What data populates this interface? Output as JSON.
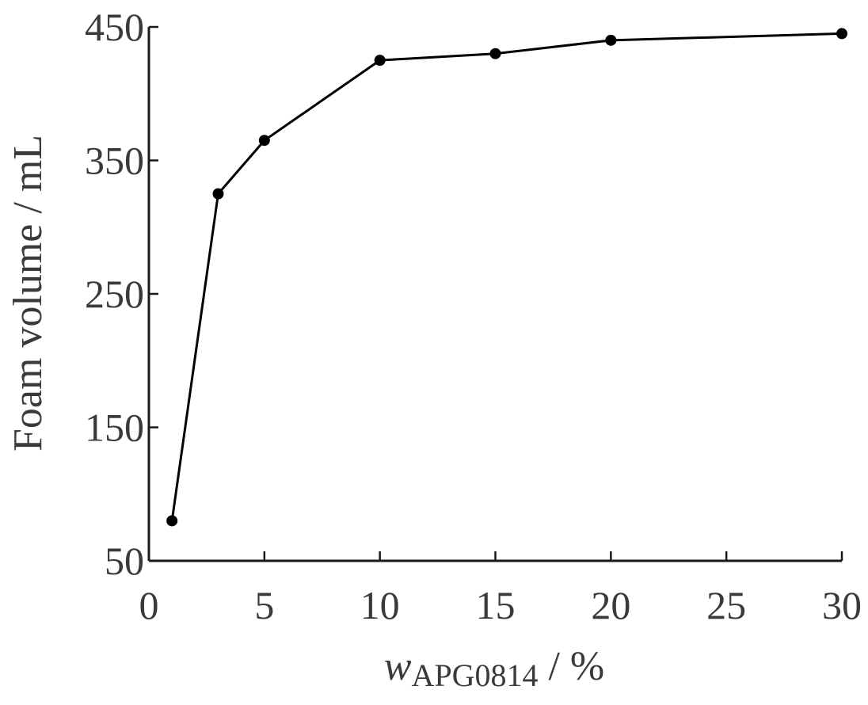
{
  "chart_data": {
    "type": "line",
    "title": "",
    "xlabel_var": "w",
    "xlabel_sub": "APG0814",
    "xlabel_unit": " / %",
    "ylabel": "Foam volume / mL",
    "xlim": [
      0,
      30
    ],
    "ylim": [
      50,
      450
    ],
    "x_tick_values": [
      0,
      5,
      10,
      15,
      20,
      25,
      30
    ],
    "x_tick_labels": [
      "0",
      "5",
      "10",
      "15",
      "20",
      "25",
      "30"
    ],
    "y_tick_values": [
      50,
      150,
      250,
      350,
      450
    ],
    "y_tick_labels": [
      "50",
      "150",
      "250",
      "350",
      "450"
    ],
    "x": [
      1,
      3,
      5,
      10,
      15,
      20,
      30
    ],
    "series": [
      {
        "values": [
          80,
          325,
          365,
          425,
          430,
          440,
          445
        ]
      }
    ],
    "grid": false,
    "line_color": "#000000"
  }
}
